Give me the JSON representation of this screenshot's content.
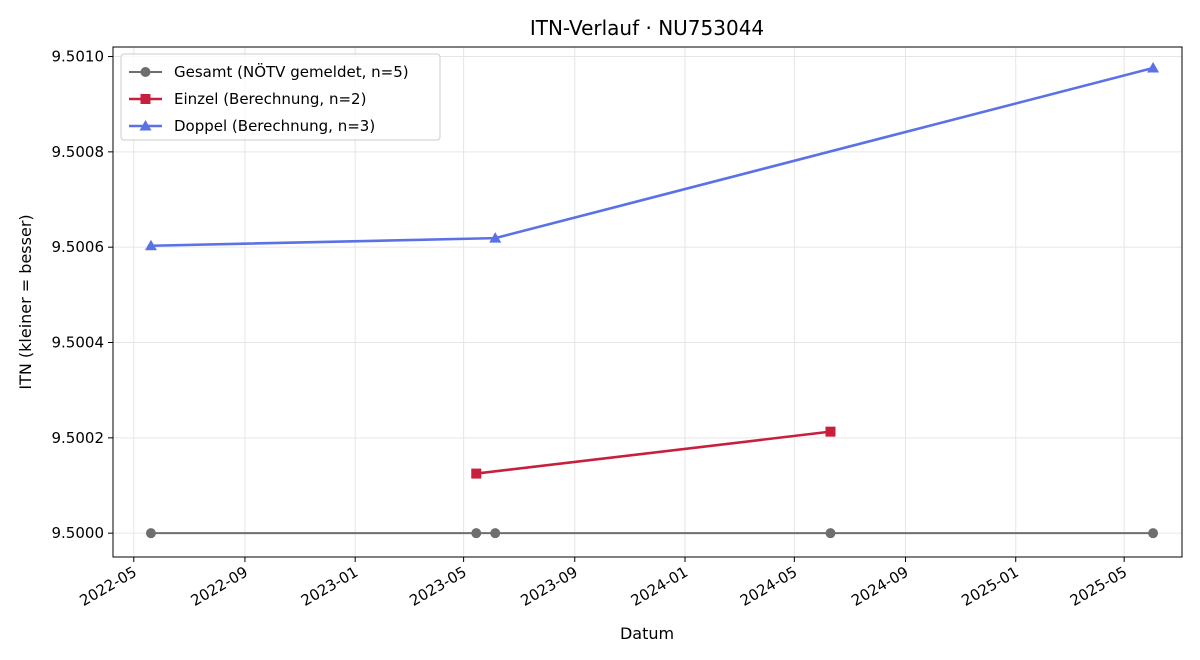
{
  "chart_data": {
    "type": "line",
    "title": "ITN-Verlauf · NU753044",
    "xlabel": "Datum",
    "ylabel": "ITN  (kleiner = besser)",
    "xlim": [
      "2022-04-08",
      "2025-07-04"
    ],
    "ylim": [
      9.49995,
      9.50102
    ],
    "x_ticks": [
      "2022-05",
      "2022-09",
      "2023-01",
      "2023-05",
      "2023-09",
      "2024-01",
      "2024-05",
      "2024-09",
      "2025-01",
      "2025-05"
    ],
    "y_ticks": [
      "9.5000",
      "9.5002",
      "9.5004",
      "9.5006",
      "9.5008",
      "9.5010"
    ],
    "y_tick_values": [
      9.5,
      9.5002,
      9.5004,
      9.5006,
      9.5008,
      9.501
    ],
    "grid": true,
    "legend_position": "top-left",
    "series": [
      {
        "name": "Gesamt (NÖTV gemeldet, n=5)",
        "color": "#6e6e6e",
        "marker": "circle",
        "points": [
          {
            "x": "2022-05-20",
            "y": 9.5
          },
          {
            "x": "2023-05-15",
            "y": 9.5
          },
          {
            "x": "2023-06-05",
            "y": 9.5
          },
          {
            "x": "2024-06-10",
            "y": 9.5
          },
          {
            "x": "2025-06-02",
            "y": 9.5
          }
        ]
      },
      {
        "name": "Einzel (Berechnung, n=2)",
        "color": "#c8203c",
        "marker": "square",
        "points": [
          {
            "x": "2023-05-15",
            "y": 9.500125
          },
          {
            "x": "2024-06-10",
            "y": 9.500213
          }
        ]
      },
      {
        "name": "Doppel (Berechnung, n=3)",
        "color": "#5b72e6",
        "marker": "triangle",
        "points": [
          {
            "x": "2022-05-20",
            "y": 9.500603
          },
          {
            "x": "2023-06-05",
            "y": 9.500619
          },
          {
            "x": "2025-06-02",
            "y": 9.500976
          }
        ]
      }
    ]
  }
}
